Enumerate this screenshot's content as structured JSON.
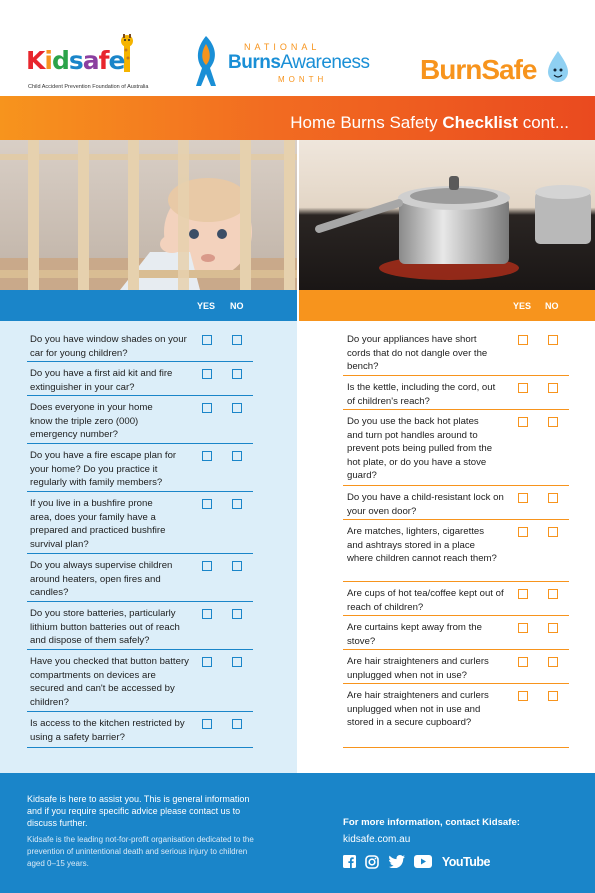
{
  "header": {
    "kidsafe": {
      "word": "Kidsafe",
      "tagline": "Child Accident Prevention Foundation of Australia"
    },
    "burns_awareness": {
      "national": "NATIONAL",
      "main_bold": "Burns",
      "main_rest": "Awareness",
      "month": "MONTH",
      "tm": "TM"
    },
    "burnsafe": {
      "word": "BurnSafe"
    }
  },
  "title": {
    "prefix": "Home Burns Safety ",
    "bold": "Checklist",
    "suffix": " cont..."
  },
  "columns": {
    "yes_label": "YES",
    "no_label": "NO"
  },
  "left_questions": [
    "Do you have window shades on your car for young children?",
    "Do you have a first aid kit and fire extinguisher in your car?",
    "Does everyone in your home know the triple zero (000) emergency number?",
    "Do you have a fire escape plan for your home? Do you practice it regularly with family members?",
    "If you live in a bushfire prone area, does your family have a prepared and practiced bushfire survival plan?",
    "Do you always supervise children around heaters, open fires and candles?",
    "Do you store batteries, particularly lithium button batteries out of reach and dispose of them safely?",
    "Have you checked that button battery compartments on devices are secured and can't be accessed by children?",
    "Is access to the kitchen restricted by using a safety barrier?"
  ],
  "right_questions": [
    "Do your appliances have short cords that do not dangle over the bench?",
    "Is the kettle, including the cord, out of children's reach?",
    "Do you use the back hot plates and turn pot handles around to prevent pots being pulled from the hot plate, or do you have a stove guard?",
    "Do you have a child-resistant lock on your oven door?",
    "Are matches, lighters, cigarettes and ashtrays stored in a place where children cannot reach them?",
    "Are cups of hot tea/coffee kept out of reach of children?",
    "Are curtains kept away from the stove?",
    "Are hair straighteners and curlers unplugged when not in use?",
    "Are hair straighteners and curlers unplugged when not in use and stored in a secure cupboard?"
  ],
  "footer": {
    "assist": "Kidsafe is here to assist you. This is general information and if you require specific advice please contact us to discuss further.",
    "about": "Kidsafe is the leading not-for-profit organisation dedicated to the prevention of unintentional death and serious injury to children aged 0–15 years.",
    "more_info": "For more information, contact Kidsafe:",
    "url": "kidsafe.com.au",
    "youtube_label": "YouTube"
  },
  "colors": {
    "blue": "#1a85c9",
    "orange": "#f7941d",
    "light_blue": "#dceef9"
  }
}
